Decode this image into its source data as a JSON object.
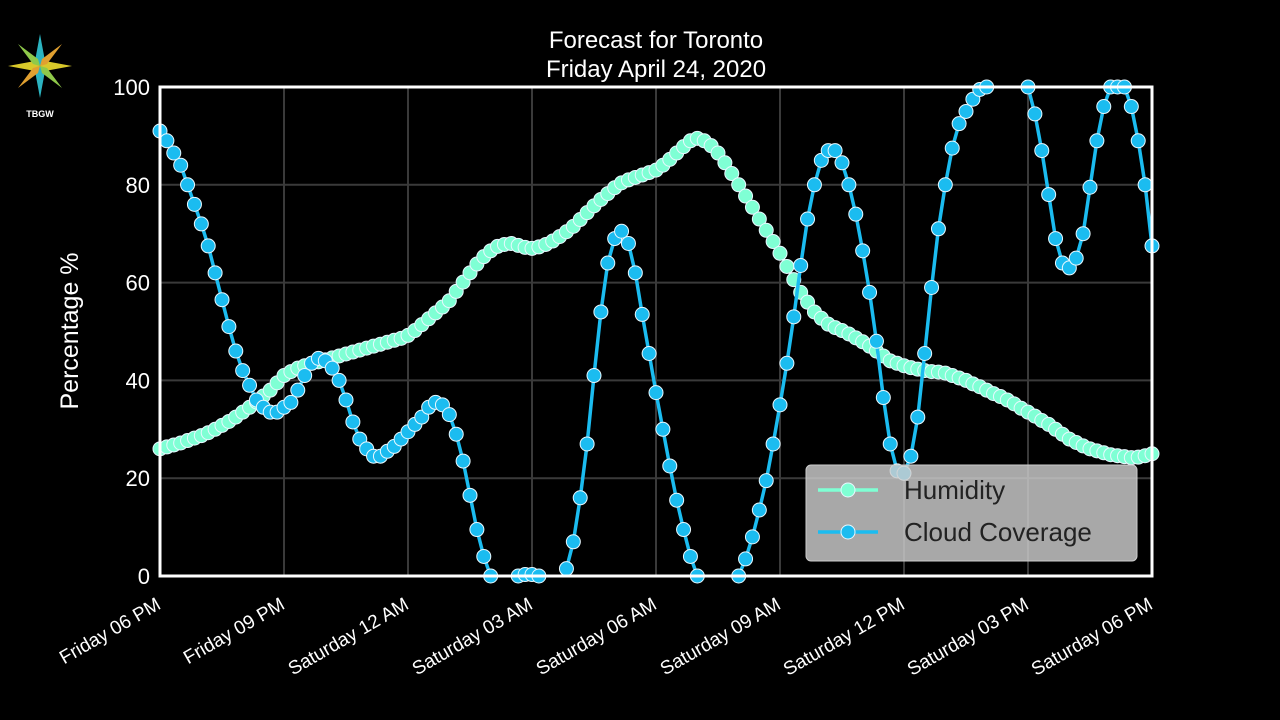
{
  "logo": {
    "text": "TBGW"
  },
  "chart_data": {
    "type": "line",
    "title": "Forecast for Toronto",
    "subtitle": "Friday April 24, 2020",
    "ylabel": "Percentage %",
    "ylim": [
      0,
      100
    ],
    "yticks": [
      0,
      20,
      40,
      60,
      80,
      100
    ],
    "grid": true,
    "legend": "lower right",
    "categories": [
      "Friday 06 PM",
      null,
      null,
      null,
      null,
      null,
      null,
      null,
      null,
      null,
      null,
      null,
      null,
      null,
      null,
      null,
      null,
      null,
      "Friday 09 PM",
      null,
      null,
      null,
      null,
      null,
      null,
      null,
      null,
      null,
      null,
      null,
      null,
      null,
      null,
      null,
      null,
      null,
      "Saturday 12 AM",
      null,
      null,
      null,
      null,
      null,
      null,
      null,
      null,
      null,
      null,
      null,
      null,
      null,
      null,
      null,
      null,
      null,
      "Saturday 03 AM",
      null,
      null,
      null,
      null,
      null,
      null,
      null,
      null,
      null,
      null,
      null,
      null,
      null,
      null,
      null,
      null,
      null,
      "Saturday 06 AM",
      null,
      null,
      null,
      null,
      null,
      null,
      null,
      null,
      null,
      null,
      null,
      null,
      null,
      null,
      null,
      null,
      null,
      "Saturday 09 AM",
      null,
      null,
      null,
      null,
      null,
      null,
      null,
      null,
      null,
      null,
      null,
      null,
      null,
      null,
      null,
      null,
      null,
      "Saturday 12 PM",
      null,
      null,
      null,
      null,
      null,
      null,
      null,
      null,
      null,
      null,
      null,
      null,
      null,
      null,
      null,
      null,
      null,
      "Saturday 03 PM",
      null,
      null,
      null,
      null,
      null,
      null,
      null,
      null,
      null,
      null,
      null,
      null,
      null,
      null,
      null,
      null,
      null,
      "Saturday 06 PM"
    ],
    "series": [
      {
        "name": "Humidity",
        "color": "#7fffd4",
        "values": [
          26,
          26.4,
          26.8,
          27.2,
          27.7,
          28.2,
          28.7,
          29.3,
          30,
          30.8,
          31.6,
          32.5,
          33.5,
          34.5,
          35.6,
          36.8,
          38,
          39.5,
          41,
          41.8,
          42.5,
          43,
          43.5,
          43.8,
          44.2,
          44.6,
          45,
          45.4,
          45.8,
          46.2,
          46.6,
          47,
          47.4,
          47.8,
          48.2,
          48.6,
          49.2,
          50.2,
          51.4,
          52.6,
          53.8,
          55,
          56.3,
          58.2,
          60.1,
          62,
          63.8,
          65.3,
          66.5,
          67.4,
          67.8,
          68,
          67.6,
          67.2,
          67,
          67.3,
          67.8,
          68.5,
          69.4,
          70.4,
          71.5,
          72.9,
          74.3,
          75.7,
          77,
          78.2,
          79.4,
          80.4,
          81,
          81.5,
          82,
          82.5,
          83,
          84,
          85.2,
          86.5,
          87.8,
          89,
          89.5,
          89,
          88,
          86.5,
          84.5,
          82.3,
          80,
          77.7,
          75.4,
          73,
          70.7,
          68.4,
          66,
          63.3,
          60.6,
          58,
          56,
          54,
          52.7,
          51.5,
          50.8,
          50.2,
          49.5,
          48.7,
          47.9,
          47,
          46,
          45,
          44,
          43.5,
          43,
          42.6,
          42.3,
          42,
          41.8,
          41.7,
          41.5,
          41,
          40.5,
          40,
          39.3,
          38.7,
          38,
          37.3,
          36.7,
          36,
          35.2,
          34.3,
          33.5,
          32.7,
          31.8,
          31,
          30,
          29,
          28,
          27.3,
          26.6,
          26,
          25.6,
          25.2,
          24.8,
          24.6,
          24.4,
          24.2,
          24.3,
          24.6,
          25
        ]
      },
      {
        "name": "Cloud Coverage",
        "color": "#1bbcf0",
        "values": [
          91,
          89,
          86.5,
          84,
          80,
          76,
          72,
          67.5,
          62,
          56.5,
          51,
          46,
          42,
          39,
          36,
          34.5,
          33.5,
          33.5,
          34.5,
          35.5,
          38,
          41,
          43.5,
          44.5,
          44,
          42.5,
          40,
          36,
          31.5,
          28,
          26,
          24.5,
          24.5,
          25.5,
          26.5,
          28,
          29.5,
          31,
          32.5,
          34.5,
          35.5,
          35,
          33,
          29,
          23.5,
          16.5,
          9.5,
          4,
          0,
          null,
          null,
          null,
          0,
          0.3,
          0.3,
          0,
          null,
          null,
          null,
          1.5,
          7,
          16,
          27,
          41,
          54,
          64,
          69,
          70.5,
          68,
          62,
          53.5,
          45.5,
          37.5,
          30,
          22.5,
          15.5,
          9.5,
          4,
          0,
          null,
          null,
          null,
          null,
          null,
          0,
          3.5,
          8,
          13.5,
          19.5,
          27,
          35,
          43.5,
          53,
          63.5,
          73,
          80,
          85,
          87,
          87,
          84.5,
          80,
          74,
          66.5,
          58,
          48,
          36.5,
          27,
          21.5,
          21,
          24.5,
          32.5,
          45.5,
          59,
          71,
          80,
          87.5,
          92.5,
          95,
          97.5,
          99.5,
          100,
          null,
          null,
          null,
          null,
          null,
          100,
          94.5,
          87,
          78,
          69,
          64,
          63,
          65,
          70,
          79.5,
          89,
          96,
          100,
          100,
          100,
          96,
          89,
          80,
          67.5
        ]
      }
    ]
  }
}
